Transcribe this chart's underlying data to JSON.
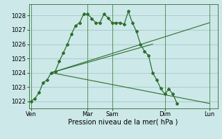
{
  "background_color": "#cce8e8",
  "grid_color": "#aacccc",
  "line_color": "#2d6e2d",
  "title": "Pression niveau de la mer( hPa )",
  "ylim": [
    1021.5,
    1028.8
  ],
  "yticks": [
    1022,
    1023,
    1024,
    1025,
    1026,
    1027,
    1028
  ],
  "day_labels": [
    "Ven",
    "Mar",
    "Sam",
    "Dim",
    "Lun"
  ],
  "day_positions": [
    0,
    14,
    20,
    33,
    44
  ],
  "main_x": [
    0,
    1,
    2,
    3,
    4,
    5,
    6,
    7,
    8,
    9,
    10,
    11,
    12,
    13,
    14,
    15,
    16,
    17,
    18,
    19,
    20,
    21,
    22,
    23,
    24,
    25,
    26,
    27,
    28,
    29,
    30,
    31,
    32,
    33,
    34,
    35,
    36
  ],
  "main_y": [
    1022.0,
    1022.2,
    1022.6,
    1023.3,
    1023.5,
    1024.0,
    1024.1,
    1024.8,
    1025.4,
    1026.0,
    1026.7,
    1027.3,
    1027.5,
    1028.1,
    1028.1,
    1027.8,
    1027.5,
    1027.5,
    1028.1,
    1027.85,
    1027.5,
    1027.5,
    1027.5,
    1027.4,
    1028.3,
    1027.5,
    1026.9,
    1026.0,
    1025.5,
    1025.2,
    1024.0,
    1023.5,
    1022.9,
    1022.5,
    1022.85,
    1022.5,
    1021.85
  ],
  "line1_x": [
    5,
    44
  ],
  "line1_y": [
    1024.0,
    1021.85
  ],
  "line2_x": [
    5,
    44
  ],
  "line2_y": [
    1024.0,
    1027.5
  ],
  "line3_x": [
    5,
    30
  ],
  "line3_y": [
    1024.0,
    1026.0
  ],
  "vline_positions": [
    0,
    14,
    20,
    33,
    44
  ],
  "xlim": [
    -0.5,
    46
  ]
}
